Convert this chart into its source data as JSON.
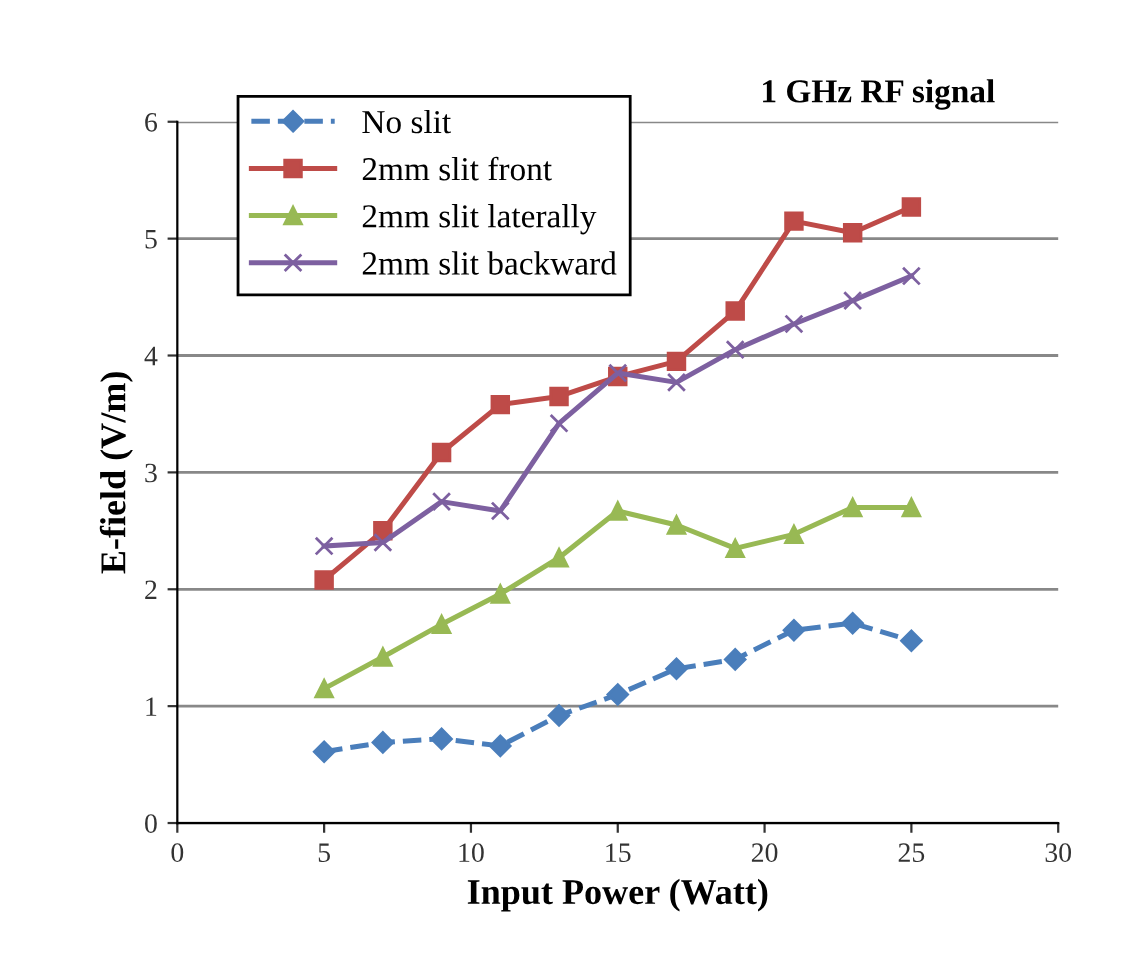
{
  "chart_data": {
    "type": "line",
    "xlabel": "Input Power (Watt)",
    "ylabel": "E-field (V/m)",
    "annotations": [
      "1 GHz RF signal"
    ],
    "x": [
      5,
      7,
      9,
      11,
      13,
      15,
      17,
      19,
      21,
      23,
      25
    ],
    "series": [
      {
        "name": "No slit",
        "color": "#4a7ebb",
        "marker": "diamond",
        "line_style": "dashed",
        "values": [
          0.61,
          0.69,
          0.72,
          0.66,
          0.92,
          1.1,
          1.32,
          1.4,
          1.65,
          1.71,
          1.56
        ]
      },
      {
        "name": "2mm slit front",
        "color": "#be4b48",
        "marker": "square",
        "line_style": "solid",
        "values": [
          2.08,
          2.5,
          3.17,
          3.58,
          3.65,
          3.82,
          3.95,
          4.38,
          5.15,
          5.05,
          5.27
        ]
      },
      {
        "name": "2mm slit laterally",
        "color": "#98b954",
        "marker": "triangle",
        "line_style": "solid",
        "values": [
          1.15,
          1.42,
          1.7,
          1.96,
          2.27,
          2.67,
          2.55,
          2.35,
          2.47,
          2.7,
          2.7
        ]
      },
      {
        "name": "2mm slit backward",
        "color": "#7d60a0",
        "marker": "cross",
        "line_style": "solid",
        "values": [
          2.37,
          2.4,
          2.75,
          2.67,
          3.42,
          3.85,
          3.77,
          4.05,
          4.27,
          4.47,
          4.68
        ]
      }
    ],
    "xlim": [
      0,
      30
    ],
    "xticks": [
      0,
      5,
      10,
      15,
      20,
      25,
      30
    ],
    "ylim": [
      0,
      6
    ],
    "yticks": [
      0,
      1,
      2,
      3,
      4,
      5,
      6
    ],
    "grid": "y",
    "legend": "top left"
  }
}
